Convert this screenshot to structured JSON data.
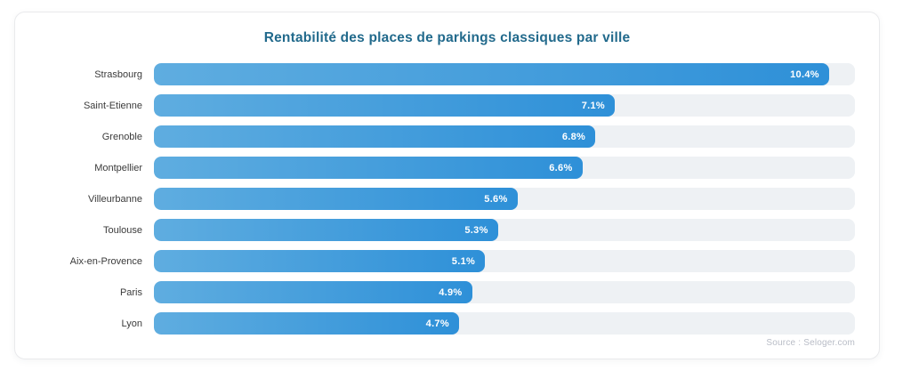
{
  "chart_data": {
    "type": "bar",
    "orientation": "horizontal",
    "title": "Rentabilité des places de parkings classiques par ville",
    "categories": [
      "Strasbourg",
      "Saint-Etienne",
      "Grenoble",
      "Montpellier",
      "Villeurbanne",
      "Toulouse",
      "Aix-en-Provence",
      "Paris",
      "Lyon"
    ],
    "values": [
      10.4,
      7.1,
      6.8,
      6.6,
      5.6,
      5.3,
      5.1,
      4.9,
      4.7
    ],
    "value_suffix": "%",
    "xlabel": "",
    "ylabel": "",
    "xlim": [
      0,
      10.8
    ],
    "grid": false,
    "legend": false
  },
  "footer": {
    "source": "Source : Seloger.com"
  },
  "colors": {
    "bar_gradient_start": "#5fade0",
    "bar_gradient_end": "#2e90d8",
    "track": "#eef1f4",
    "title_text": "#226a8c",
    "category_text": "#3b3b3b",
    "value_text": "#ffffff",
    "source_text": "#b8bcc6",
    "card_border": "#e9eaec",
    "card_background": "#ffffff"
  }
}
